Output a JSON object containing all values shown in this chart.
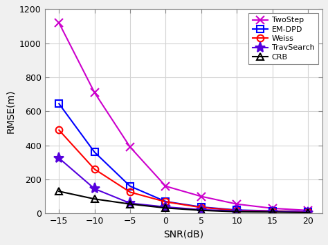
{
  "snr": [
    -15,
    -10,
    -5,
    0,
    5,
    10,
    15,
    20
  ],
  "TwoStep": [
    1120,
    710,
    390,
    160,
    100,
    55,
    30,
    18
  ],
  "EM_DPD": [
    645,
    360,
    160,
    70,
    38,
    20,
    15,
    10
  ],
  "Weiss": [
    490,
    260,
    125,
    68,
    35,
    18,
    13,
    8
  ],
  "TravSearch": [
    325,
    145,
    60,
    38,
    22,
    15,
    10,
    7
  ],
  "CRB": [
    130,
    85,
    55,
    32,
    18,
    10,
    8,
    5
  ],
  "colors": {
    "TwoStep": "#CC00CC",
    "EM_DPD": "#0000FF",
    "Weiss": "#FF0000",
    "TravSearch": "#5500DD",
    "CRB": "#000000"
  },
  "markers": {
    "TwoStep": "x",
    "EM_DPD": "s",
    "Weiss": "o",
    "TravSearch": "*",
    "CRB": "^"
  },
  "labels": {
    "TwoStep": "TwoStep",
    "EM_DPD": "EM-DPD",
    "Weiss": "Weiss",
    "TravSearch": "TravSearch",
    "CRB": "CRB"
  },
  "xlabel": "SNR(dB)",
  "ylabel": "RMSE(m)",
  "xlim": [
    -17,
    22
  ],
  "ylim": [
    0,
    1200
  ],
  "yticks": [
    0,
    200,
    400,
    600,
    800,
    1000,
    1200
  ],
  "xticks": [
    -15,
    -10,
    -5,
    0,
    5,
    10,
    15,
    20
  ],
  "fig_bg": "#F0F0F0",
  "plot_bg": "#FFFFFF",
  "grid_color": "#D3D3D3",
  "spine_color": "#888888"
}
